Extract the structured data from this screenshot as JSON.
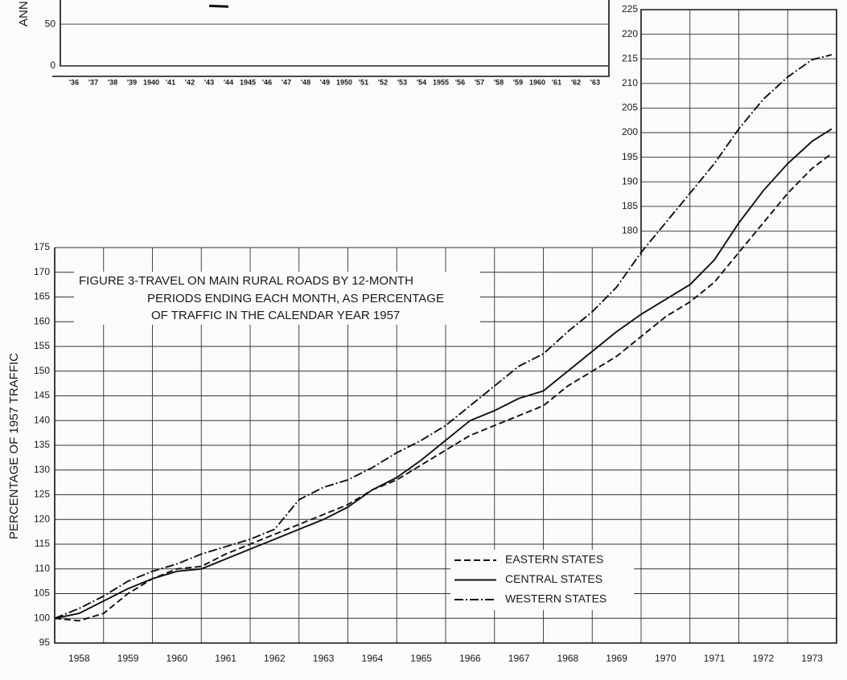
{
  "chart_data": [
    {
      "type": "line",
      "title": [
        "FIGURE 3-TRAVEL ON MAIN RURAL ROADS BY 12-MONTH",
        "PERIODS ENDING EACH MONTH, AS PERCENTAGE",
        "OF TRAFFIC IN THE CALENDAR YEAR 1957"
      ],
      "y_label": "PERCENTAGE OF 1957 TRAFFIC",
      "x": [
        1958,
        1958.5,
        1959,
        1959.5,
        1960,
        1960.5,
        1961,
        1961.5,
        1962,
        1962.5,
        1963,
        1963.5,
        1964,
        1964.5,
        1965,
        1965.5,
        1966,
        1966.5,
        1967,
        1967.5,
        1968,
        1968.5,
        1969,
        1969.5,
        1970,
        1970.5,
        1971,
        1971.5,
        1972,
        1972.5,
        1973,
        1973.5,
        1973.9
      ],
      "series": [
        {
          "name": "EASTERN STATES",
          "color": "#111111",
          "dash": "dashed",
          "values": [
            100,
            99.5,
            101,
            105,
            108,
            110,
            110.5,
            113,
            115,
            117,
            119,
            121,
            123,
            126,
            128,
            131,
            134,
            137,
            139,
            141,
            143,
            147,
            150,
            153,
            157,
            161,
            164,
            168,
            174,
            180,
            186,
            191,
            194
          ]
        },
        {
          "name": "CENTRAL STATES",
          "color": "#111111",
          "dash": "solid",
          "values": [
            100,
            101,
            103.5,
            106,
            108,
            109.5,
            110,
            112,
            114,
            116,
            118,
            120,
            122.5,
            126,
            128.5,
            132,
            136,
            140,
            142,
            144.5,
            146,
            150,
            154,
            158,
            161.5,
            164.5,
            167.5,
            172.5,
            180,
            186.5,
            192,
            196.5,
            199
          ]
        },
        {
          "name": "WESTERN STATES",
          "color": "#111111",
          "dash": "dashdot",
          "values": [
            100,
            102,
            104.5,
            107.5,
            109.5,
            111,
            113,
            114.5,
            116,
            118,
            124,
            126.5,
            128,
            130.5,
            133.5,
            136,
            139,
            143,
            147,
            151,
            153.5,
            158,
            162,
            167,
            174,
            180,
            186,
            192,
            199,
            205,
            209.5,
            213,
            214
          ]
        }
      ],
      "xlim": [
        1958,
        1974
      ],
      "xticks": [
        1958,
        1959,
        1960,
        1961,
        1962,
        1963,
        1964,
        1965,
        1966,
        1967,
        1968,
        1969,
        1970,
        1971,
        1972,
        1973
      ],
      "ylim": [
        95,
        175
      ],
      "yticks": [
        95,
        100,
        105,
        110,
        115,
        120,
        125,
        130,
        135,
        140,
        145,
        150,
        155,
        160,
        165,
        170,
        175
      ],
      "y2lim": [
        175,
        225
      ],
      "y2ticks": [
        180,
        185,
        190,
        195,
        200,
        205,
        210,
        215,
        220,
        225
      ],
      "y2axis_at": 1970,
      "grid": true,
      "legend": "lower right"
    },
    {
      "type": "line",
      "y_label": "ANN",
      "categories": [
        "'36",
        "'37",
        "'38",
        "'39",
        "1940",
        "'41",
        "'42",
        "'43",
        "'44",
        "1945",
        "'46",
        "'47",
        "'48",
        "'49",
        "1950",
        "'51",
        "'52",
        "'53",
        "'54",
        "1955",
        "'56",
        "'57",
        "'58",
        "'59",
        "1960",
        "'61",
        "'62",
        "'63"
      ],
      "values": [
        null,
        null,
        null,
        null,
        null,
        null,
        null,
        72,
        71,
        null,
        null,
        null,
        null,
        null,
        null,
        null,
        null,
        null,
        null,
        null,
        null,
        null,
        null,
        null,
        null,
        null,
        null,
        null
      ],
      "color": "#111111",
      "ylim": [
        0,
        79
      ],
      "yticks": [
        0,
        50
      ]
    }
  ]
}
